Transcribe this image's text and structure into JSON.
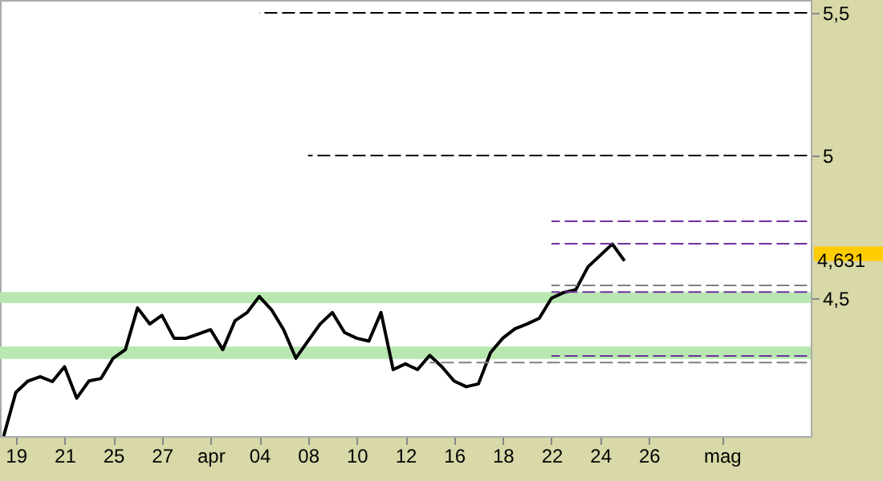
{
  "chart_data": {
    "type": "line",
    "categories": [
      null,
      "19",
      null,
      null,
      null,
      "21",
      null,
      null,
      null,
      "25",
      null,
      null,
      null,
      "27",
      null,
      null,
      null,
      "apr",
      null,
      null,
      null,
      "04",
      null,
      null,
      null,
      "08",
      null,
      null,
      null,
      "10",
      null,
      null,
      null,
      "12",
      null,
      null,
      null,
      "16",
      null,
      null,
      null,
      "18",
      null,
      null,
      null,
      "22",
      null,
      null,
      null,
      "24",
      null,
      null,
      null,
      "26",
      null,
      null,
      null,
      null,
      null,
      "mag",
      null,
      null,
      null,
      null,
      null,
      null,
      null
    ],
    "ylim": [
      4.017,
      5.545
    ],
    "yticks": [
      {
        "value": 4.5,
        "label": "4,5"
      },
      {
        "value": 5,
        "label": "5"
      },
      {
        "value": 5.5,
        "label": "5,5"
      }
    ],
    "grid": false,
    "annotations": [
      "4,631"
    ],
    "bands": [
      {
        "axis": "y",
        "from": 4.483,
        "to": 4.522,
        "color": "#b8e8b0"
      },
      {
        "axis": "y",
        "from": 4.287,
        "to": 4.331,
        "color": "#b8e8b0"
      }
    ],
    "series": [
      {
        "color": "#000000",
        "values": [
          4.017,
          4.17,
          4.21,
          4.225,
          4.208,
          4.26,
          4.15,
          4.21,
          4.219,
          4.29,
          4.32,
          4.466,
          4.41,
          4.44,
          4.36,
          4.36,
          4.375,
          4.39,
          4.32,
          4.421,
          4.45,
          4.506,
          4.46,
          4.39,
          4.29,
          4.35,
          4.41,
          4.45,
          4.38,
          4.36,
          4.35,
          4.45,
          4.25,
          4.27,
          4.25,
          4.3,
          4.26,
          4.21,
          4.19,
          4.2,
          4.31,
          4.36,
          4.393,
          4.41,
          4.43,
          4.5,
          4.52,
          4.53,
          4.61,
          4.65,
          4.69,
          4.631,
          null,
          null,
          null,
          null,
          null,
          null,
          null,
          null,
          null,
          null,
          null,
          null,
          null,
          null,
          null
        ]
      },
      {
        "color": "#000000",
        "line_style": "dashed",
        "values": [
          null,
          null,
          null,
          null,
          null,
          null,
          null,
          null,
          null,
          null,
          null,
          null,
          null,
          null,
          null,
          null,
          null,
          null,
          null,
          null,
          null,
          5.5,
          5.5,
          5.5,
          5.5,
          5.5,
          5.5,
          5.5,
          5.5,
          5.5,
          5.5,
          5.5,
          5.5,
          5.5,
          5.5,
          5.5,
          5.5,
          5.5,
          5.5,
          5.5,
          5.5,
          5.5,
          5.5,
          5.5,
          5.5,
          5.5,
          5.5,
          5.5,
          5.5,
          5.5,
          5.5,
          5.5,
          5.5,
          5.5,
          5.5,
          5.5,
          5.5,
          5.5,
          5.5,
          5.5,
          5.5,
          5.5,
          5.5,
          5.5,
          5.5,
          5.5,
          5.5
        ]
      },
      {
        "color": "#000000",
        "line_style": "dashed",
        "values": [
          null,
          null,
          null,
          null,
          null,
          null,
          null,
          null,
          null,
          null,
          null,
          null,
          null,
          null,
          null,
          null,
          null,
          null,
          null,
          null,
          null,
          null,
          null,
          null,
          null,
          5,
          5,
          5,
          5,
          5,
          5,
          5,
          5,
          5,
          5,
          5,
          5,
          5,
          5,
          5,
          5,
          5,
          5,
          5,
          5,
          5,
          5,
          5,
          5,
          5,
          5,
          5,
          5,
          5,
          5,
          5,
          5,
          5,
          5,
          5,
          5,
          5,
          5,
          5,
          5,
          5,
          5
        ]
      },
      {
        "color": "#7030a0",
        "line_style": "dashed",
        "values": [
          null,
          null,
          null,
          null,
          null,
          null,
          null,
          null,
          null,
          null,
          null,
          null,
          null,
          null,
          null,
          null,
          null,
          null,
          null,
          null,
          null,
          null,
          null,
          null,
          null,
          null,
          null,
          null,
          null,
          null,
          null,
          null,
          null,
          null,
          null,
          null,
          null,
          null,
          null,
          null,
          null,
          null,
          null,
          null,
          null,
          4.77,
          4.77,
          4.77,
          4.77,
          4.77,
          4.77,
          4.77,
          4.77,
          4.77,
          4.77,
          4.77,
          4.77,
          4.77,
          4.77,
          4.77,
          4.77,
          4.77,
          4.77,
          4.77,
          4.77,
          4.77,
          4.77
        ]
      },
      {
        "color": "#7030a0",
        "line_style": "dashed",
        "values": [
          null,
          null,
          null,
          null,
          null,
          null,
          null,
          null,
          null,
          null,
          null,
          null,
          null,
          null,
          null,
          null,
          null,
          null,
          null,
          null,
          null,
          null,
          null,
          null,
          null,
          null,
          null,
          null,
          null,
          null,
          null,
          null,
          null,
          null,
          null,
          null,
          null,
          null,
          null,
          null,
          null,
          null,
          null,
          null,
          null,
          4.691,
          4.691,
          4.691,
          4.691,
          4.691,
          4.691,
          4.691,
          4.691,
          4.691,
          4.691,
          4.691,
          4.691,
          4.691,
          4.691,
          4.691,
          4.691,
          4.691,
          4.691,
          4.691,
          4.691,
          4.691,
          4.691
        ]
      },
      {
        "color": "#808080",
        "line_style": "dashed",
        "values": [
          null,
          null,
          null,
          null,
          null,
          null,
          null,
          null,
          null,
          null,
          null,
          null,
          null,
          null,
          null,
          null,
          null,
          null,
          null,
          null,
          null,
          null,
          null,
          null,
          null,
          null,
          null,
          null,
          null,
          null,
          null,
          null,
          null,
          null,
          null,
          null,
          null,
          null,
          null,
          null,
          null,
          null,
          null,
          null,
          null,
          4.545,
          4.545,
          4.545,
          4.545,
          4.545,
          4.545,
          4.545,
          4.545,
          4.545,
          4.545,
          4.545,
          4.545,
          4.545,
          4.545,
          4.545,
          4.545,
          4.545,
          4.545,
          4.545,
          4.545,
          4.545,
          4.545
        ]
      },
      {
        "color": "#7030a0",
        "line_style": "dashed",
        "values": [
          null,
          null,
          null,
          null,
          null,
          null,
          null,
          null,
          null,
          null,
          null,
          null,
          null,
          null,
          null,
          null,
          null,
          null,
          null,
          null,
          null,
          null,
          null,
          null,
          null,
          null,
          null,
          null,
          null,
          null,
          null,
          null,
          null,
          null,
          null,
          null,
          null,
          null,
          null,
          null,
          null,
          null,
          null,
          null,
          null,
          4.522,
          4.522,
          4.522,
          4.522,
          4.522,
          4.522,
          4.522,
          4.522,
          4.522,
          4.522,
          4.522,
          4.522,
          4.522,
          4.522,
          4.522,
          4.522,
          4.522,
          4.522,
          4.522,
          4.522,
          4.522,
          4.522
        ]
      },
      {
        "color": "#7030a0",
        "line_style": "dashed",
        "values": [
          null,
          null,
          null,
          null,
          null,
          null,
          null,
          null,
          null,
          null,
          null,
          null,
          null,
          null,
          null,
          null,
          null,
          null,
          null,
          null,
          null,
          null,
          null,
          null,
          null,
          null,
          null,
          null,
          null,
          null,
          null,
          null,
          null,
          null,
          null,
          null,
          null,
          null,
          null,
          null,
          null,
          null,
          null,
          null,
          null,
          4.298,
          4.298,
          4.298,
          4.298,
          4.298,
          4.298,
          4.298,
          4.298,
          4.298,
          4.298,
          4.298,
          4.298,
          4.298,
          4.298,
          4.298,
          4.298,
          4.298,
          4.298,
          4.298,
          4.298,
          4.298,
          4.298
        ]
      },
      {
        "color": "#808080",
        "line_style": "dashed",
        "values": [
          null,
          null,
          null,
          null,
          null,
          null,
          null,
          null,
          null,
          null,
          null,
          null,
          null,
          null,
          null,
          null,
          null,
          null,
          null,
          null,
          null,
          null,
          null,
          null,
          null,
          null,
          null,
          null,
          null,
          null,
          null,
          null,
          null,
          null,
          null,
          4.275,
          4.275,
          4.275,
          4.275,
          4.275,
          4.275,
          4.275,
          4.275,
          4.275,
          4.275,
          4.275,
          4.275,
          4.275,
          4.275,
          4.275,
          4.275,
          4.275,
          4.275,
          4.275,
          4.275,
          4.275,
          4.275,
          4.275,
          4.275,
          4.275,
          4.275,
          4.275,
          4.275,
          4.275,
          4.275,
          4.275,
          4.275
        ]
      }
    ]
  }
}
